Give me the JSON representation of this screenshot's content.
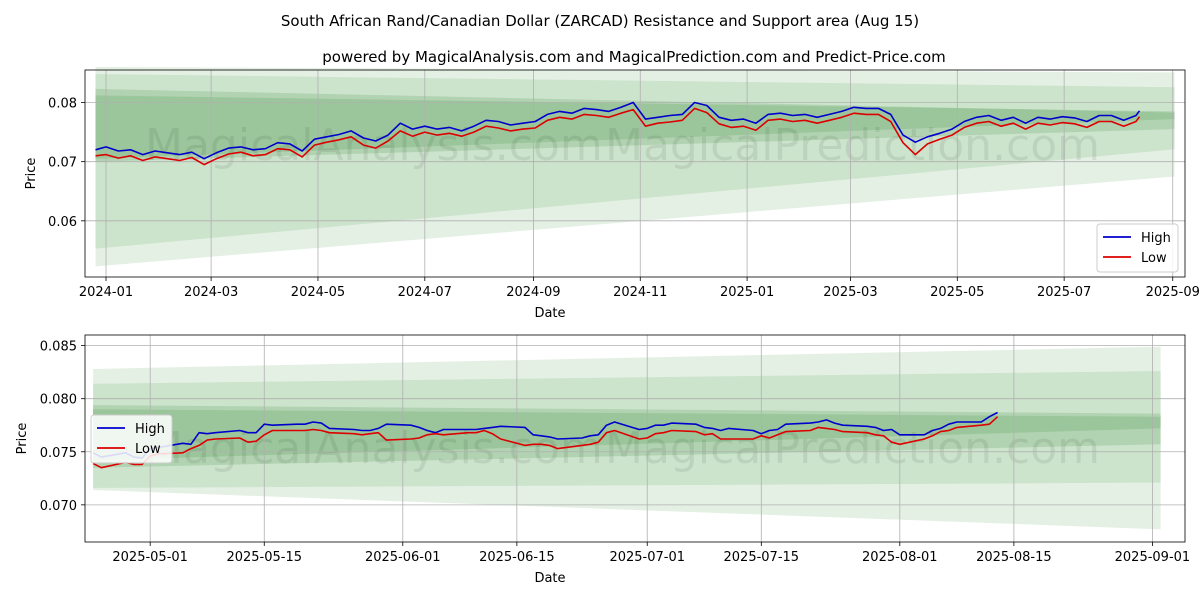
{
  "figure": {
    "title": "South African Rand/Canadian Dollar (ZARCAD) Resistance and Support area (Aug 15)",
    "subtitle": "powered by MagicalAnalysis.com and MagicalPrediction.com and Predict-Price.com",
    "watermarks": [
      "MagicalAnalysis.com",
      "MagicalPrediction.com"
    ],
    "colors": {
      "high": "#0000cc",
      "low": "#dd0000",
      "band": "#2e8b2e",
      "grid": "#b0b0b0"
    }
  },
  "chart_data": [
    {
      "type": "line",
      "xlabel": "Date",
      "ylabel": "Price",
      "xlim": [
        "2023-12-20",
        "2025-09-08"
      ],
      "ylim": [
        0.0505,
        0.0855
      ],
      "xticks": [
        "2024-01",
        "2024-03",
        "2024-05",
        "2024-07",
        "2024-09",
        "2024-11",
        "2025-01",
        "2025-03",
        "2025-05",
        "2025-07",
        "2025-09"
      ],
      "yticks": [
        "0.06",
        "0.07",
        "0.08"
      ],
      "grid": true,
      "legend": "lower-right",
      "bands": [
        {
          "x": [
            "2023-12-26",
            "2025-09-02"
          ],
          "lower": [
            0.0523,
            0.0675
          ],
          "upper": [
            0.086,
            0.0851
          ]
        },
        {
          "x": [
            "2023-12-26",
            "2025-09-02"
          ],
          "lower": [
            0.0553,
            0.0721
          ],
          "upper": [
            0.0848,
            0.0826
          ]
        },
        {
          "x": [
            "2023-12-26",
            "2025-09-02"
          ],
          "lower": [
            0.07,
            0.0755
          ],
          "upper": [
            0.0823,
            0.0783
          ]
        },
        {
          "x": [
            "2023-12-26",
            "2025-09-02"
          ],
          "lower": [
            0.0705,
            0.0772
          ],
          "upper": [
            0.0812,
            0.0785
          ]
        }
      ],
      "series": [
        {
          "name": "High",
          "x": [
            "2023-12-26",
            "2024-01-01",
            "2024-01-08",
            "2024-01-15",
            "2024-01-22",
            "2024-01-29",
            "2024-02-05",
            "2024-02-12",
            "2024-02-19",
            "2024-02-26",
            "2024-03-04",
            "2024-03-11",
            "2024-03-18",
            "2024-03-25",
            "2024-04-01",
            "2024-04-08",
            "2024-04-15",
            "2024-04-22",
            "2024-04-29",
            "2024-05-06",
            "2024-05-13",
            "2024-05-20",
            "2024-05-27",
            "2024-06-03",
            "2024-06-10",
            "2024-06-17",
            "2024-06-24",
            "2024-07-01",
            "2024-07-08",
            "2024-07-15",
            "2024-07-22",
            "2024-07-29",
            "2024-08-05",
            "2024-08-12",
            "2024-08-19",
            "2024-08-26",
            "2024-09-02",
            "2024-09-09",
            "2024-09-16",
            "2024-09-23",
            "2024-09-30",
            "2024-10-07",
            "2024-10-14",
            "2024-10-21",
            "2024-10-28",
            "2024-11-04",
            "2024-11-11",
            "2024-11-18",
            "2024-11-25",
            "2024-12-02",
            "2024-12-09",
            "2024-12-16",
            "2024-12-23",
            "2024-12-30",
            "2025-01-06",
            "2025-01-13",
            "2025-01-20",
            "2025-01-27",
            "2025-02-03",
            "2025-02-10",
            "2025-02-17",
            "2025-02-24",
            "2025-03-03",
            "2025-03-10",
            "2025-03-17",
            "2025-03-24",
            "2025-03-31",
            "2025-04-07",
            "2025-04-14",
            "2025-04-21",
            "2025-04-28",
            "2025-05-05",
            "2025-05-12",
            "2025-05-19",
            "2025-05-26",
            "2025-06-02",
            "2025-06-09",
            "2025-06-16",
            "2025-06-23",
            "2025-06-30",
            "2025-07-07",
            "2025-07-14",
            "2025-07-21",
            "2025-07-28",
            "2025-08-04",
            "2025-08-11",
            "2025-08-13"
          ],
          "values": [
            0.072,
            0.0725,
            0.0718,
            0.072,
            0.0712,
            0.0718,
            0.0715,
            0.0712,
            0.0716,
            0.0705,
            0.0715,
            0.0723,
            0.0725,
            0.072,
            0.0722,
            0.0732,
            0.073,
            0.0718,
            0.0738,
            0.0742,
            0.0746,
            0.0752,
            0.074,
            0.0735,
            0.0745,
            0.0765,
            0.0755,
            0.076,
            0.0755,
            0.0758,
            0.0752,
            0.076,
            0.077,
            0.0768,
            0.0762,
            0.0765,
            0.0768,
            0.078,
            0.0785,
            0.0782,
            0.079,
            0.0788,
            0.0785,
            0.0792,
            0.08,
            0.0772,
            0.0775,
            0.0778,
            0.078,
            0.08,
            0.0795,
            0.0775,
            0.077,
            0.0772,
            0.0765,
            0.078,
            0.0782,
            0.0778,
            0.078,
            0.0775,
            0.078,
            0.0785,
            0.0792,
            0.079,
            0.079,
            0.078,
            0.0745,
            0.0733,
            0.0742,
            0.0748,
            0.0755,
            0.0768,
            0.0775,
            0.0778,
            0.077,
            0.0775,
            0.0765,
            0.0775,
            0.0772,
            0.0776,
            0.0774,
            0.0768,
            0.0778,
            0.0778,
            0.077,
            0.0778,
            0.0786
          ]
        },
        {
          "name": "Low",
          "x": [
            "2023-12-26",
            "2024-01-01",
            "2024-01-08",
            "2024-01-15",
            "2024-01-22",
            "2024-01-29",
            "2024-02-05",
            "2024-02-12",
            "2024-02-19",
            "2024-02-26",
            "2024-03-04",
            "2024-03-11",
            "2024-03-18",
            "2024-03-25",
            "2024-04-01",
            "2024-04-08",
            "2024-04-15",
            "2024-04-22",
            "2024-04-29",
            "2024-05-06",
            "2024-05-13",
            "2024-05-20",
            "2024-05-27",
            "2024-06-03",
            "2024-06-10",
            "2024-06-17",
            "2024-06-24",
            "2024-07-01",
            "2024-07-08",
            "2024-07-15",
            "2024-07-22",
            "2024-07-29",
            "2024-08-05",
            "2024-08-12",
            "2024-08-19",
            "2024-08-26",
            "2024-09-02",
            "2024-09-09",
            "2024-09-16",
            "2024-09-23",
            "2024-09-30",
            "2024-10-07",
            "2024-10-14",
            "2024-10-21",
            "2024-10-28",
            "2024-11-04",
            "2024-11-11",
            "2024-11-18",
            "2024-11-25",
            "2024-12-02",
            "2024-12-09",
            "2024-12-16",
            "2024-12-23",
            "2024-12-30",
            "2025-01-06",
            "2025-01-13",
            "2025-01-20",
            "2025-01-27",
            "2025-02-03",
            "2025-02-10",
            "2025-02-17",
            "2025-02-24",
            "2025-03-03",
            "2025-03-10",
            "2025-03-17",
            "2025-03-24",
            "2025-03-31",
            "2025-04-07",
            "2025-04-14",
            "2025-04-21",
            "2025-04-28",
            "2025-05-05",
            "2025-05-12",
            "2025-05-19",
            "2025-05-26",
            "2025-06-02",
            "2025-06-09",
            "2025-06-16",
            "2025-06-23",
            "2025-06-30",
            "2025-07-07",
            "2025-07-14",
            "2025-07-21",
            "2025-07-28",
            "2025-08-04",
            "2025-08-11",
            "2025-08-13"
          ],
          "values": [
            0.071,
            0.0712,
            0.0706,
            0.071,
            0.0702,
            0.0708,
            0.0705,
            0.0702,
            0.0707,
            0.0695,
            0.0705,
            0.0713,
            0.0716,
            0.071,
            0.0712,
            0.0722,
            0.072,
            0.0708,
            0.0728,
            0.0733,
            0.0737,
            0.0742,
            0.0728,
            0.0723,
            0.0735,
            0.0752,
            0.0743,
            0.075,
            0.0745,
            0.0748,
            0.0743,
            0.075,
            0.076,
            0.0757,
            0.0752,
            0.0755,
            0.0757,
            0.077,
            0.0775,
            0.0772,
            0.078,
            0.0778,
            0.0775,
            0.0782,
            0.0788,
            0.076,
            0.0765,
            0.0767,
            0.077,
            0.079,
            0.0783,
            0.0764,
            0.0758,
            0.076,
            0.0753,
            0.077,
            0.0772,
            0.0768,
            0.077,
            0.0765,
            0.077,
            0.0775,
            0.0782,
            0.078,
            0.078,
            0.0768,
            0.0732,
            0.0712,
            0.073,
            0.0738,
            0.0745,
            0.0758,
            0.0765,
            0.0768,
            0.076,
            0.0765,
            0.0755,
            0.0765,
            0.0762,
            0.0766,
            0.0764,
            0.0758,
            0.0768,
            0.0768,
            0.076,
            0.0768,
            0.0776
          ]
        }
      ]
    },
    {
      "type": "line",
      "xlabel": "Date",
      "ylabel": "Price",
      "xlim": [
        "2025-04-23",
        "2025-09-05"
      ],
      "ylim": [
        0.0665,
        0.086
      ],
      "xticks": [
        "2025-05-01",
        "2025-05-15",
        "2025-06-01",
        "2025-06-15",
        "2025-07-01",
        "2025-07-15",
        "2025-08-01",
        "2025-08-15",
        "2025-09-01"
      ],
      "yticks": [
        "0.070",
        "0.075",
        "0.080",
        "0.085"
      ],
      "grid": true,
      "legend": "center-left",
      "bands": [
        {
          "x": [
            "2025-04-24",
            "2025-09-02"
          ],
          "lower": [
            0.0714,
            0.0677
          ],
          "upper": [
            0.0828,
            0.0849
          ]
        },
        {
          "x": [
            "2025-04-24",
            "2025-09-02"
          ],
          "lower": [
            0.0716,
            0.0721
          ],
          "upper": [
            0.0814,
            0.0826
          ]
        },
        {
          "x": [
            "2025-04-24",
            "2025-09-02"
          ],
          "lower": [
            0.0735,
            0.0757
          ],
          "upper": [
            0.0794,
            0.0786
          ]
        },
        {
          "x": [
            "2025-04-24",
            "2025-09-02"
          ],
          "lower": [
            0.0742,
            0.0772
          ],
          "upper": [
            0.079,
            0.0783
          ]
        }
      ],
      "series": [
        {
          "name": "High",
          "x": [
            "2025-04-24",
            "2025-04-25",
            "2025-04-28",
            "2025-04-29",
            "2025-04-30",
            "2025-05-01",
            "2025-05-02",
            "2025-05-05",
            "2025-05-06",
            "2025-05-07",
            "2025-05-08",
            "2025-05-09",
            "2025-05-12",
            "2025-05-13",
            "2025-05-14",
            "2025-05-15",
            "2025-05-16",
            "2025-05-19",
            "2025-05-20",
            "2025-05-21",
            "2025-05-22",
            "2025-05-23",
            "2025-05-26",
            "2025-05-27",
            "2025-05-28",
            "2025-05-29",
            "2025-05-30",
            "2025-06-02",
            "2025-06-03",
            "2025-06-04",
            "2025-06-05",
            "2025-06-06",
            "2025-06-09",
            "2025-06-10",
            "2025-06-11",
            "2025-06-12",
            "2025-06-13",
            "2025-06-16",
            "2025-06-17",
            "2025-06-18",
            "2025-06-19",
            "2025-06-20",
            "2025-06-23",
            "2025-06-24",
            "2025-06-25",
            "2025-06-26",
            "2025-06-27",
            "2025-06-30",
            "2025-07-01",
            "2025-07-02",
            "2025-07-03",
            "2025-07-04",
            "2025-07-07",
            "2025-07-08",
            "2025-07-09",
            "2025-07-10",
            "2025-07-11",
            "2025-07-14",
            "2025-07-15",
            "2025-07-16",
            "2025-07-17",
            "2025-07-18",
            "2025-07-21",
            "2025-07-22",
            "2025-07-23",
            "2025-07-24",
            "2025-07-25",
            "2025-07-28",
            "2025-07-29",
            "2025-07-30",
            "2025-07-31",
            "2025-08-01",
            "2025-08-04",
            "2025-08-05",
            "2025-08-06",
            "2025-08-07",
            "2025-08-08",
            "2025-08-11",
            "2025-08-12",
            "2025-08-13"
          ],
          "values": [
            0.0749,
            0.0745,
            0.0749,
            0.0745,
            0.0744,
            0.0753,
            0.0754,
            0.0758,
            0.0757,
            0.0768,
            0.0767,
            0.0768,
            0.077,
            0.0768,
            0.0768,
            0.0776,
            0.0775,
            0.0776,
            0.0776,
            0.0778,
            0.0777,
            0.0772,
            0.0771,
            0.077,
            0.077,
            0.0772,
            0.0776,
            0.0775,
            0.0773,
            0.077,
            0.0768,
            0.0771,
            0.0771,
            0.0771,
            0.0772,
            0.0773,
            0.0774,
            0.0773,
            0.0766,
            0.0765,
            0.0764,
            0.0762,
            0.0763,
            0.0765,
            0.0766,
            0.0775,
            0.0778,
            0.0771,
            0.0772,
            0.0775,
            0.0775,
            0.0777,
            0.0776,
            0.0773,
            0.0772,
            0.077,
            0.0772,
            0.077,
            0.0767,
            0.077,
            0.0771,
            0.0776,
            0.0777,
            0.0778,
            0.078,
            0.0777,
            0.0775,
            0.0774,
            0.0773,
            0.077,
            0.0771,
            0.0766,
            0.0766,
            0.077,
            0.0772,
            0.0776,
            0.0778,
            0.0778,
            0.0783,
            0.0787
          ]
        },
        {
          "name": "Low",
          "x": [
            "2025-04-24",
            "2025-04-25",
            "2025-04-28",
            "2025-04-29",
            "2025-04-30",
            "2025-05-01",
            "2025-05-02",
            "2025-05-05",
            "2025-05-06",
            "2025-05-07",
            "2025-05-08",
            "2025-05-09",
            "2025-05-12",
            "2025-05-13",
            "2025-05-14",
            "2025-05-15",
            "2025-05-16",
            "2025-05-19",
            "2025-05-20",
            "2025-05-21",
            "2025-05-22",
            "2025-05-23",
            "2025-05-26",
            "2025-05-27",
            "2025-05-28",
            "2025-05-29",
            "2025-05-30",
            "2025-06-02",
            "2025-06-03",
            "2025-06-04",
            "2025-06-05",
            "2025-06-06",
            "2025-06-09",
            "2025-06-10",
            "2025-06-11",
            "2025-06-12",
            "2025-06-13",
            "2025-06-16",
            "2025-06-17",
            "2025-06-18",
            "2025-06-19",
            "2025-06-20",
            "2025-06-23",
            "2025-06-24",
            "2025-06-25",
            "2025-06-26",
            "2025-06-27",
            "2025-06-30",
            "2025-07-01",
            "2025-07-02",
            "2025-07-03",
            "2025-07-04",
            "2025-07-07",
            "2025-07-08",
            "2025-07-09",
            "2025-07-10",
            "2025-07-11",
            "2025-07-14",
            "2025-07-15",
            "2025-07-16",
            "2025-07-17",
            "2025-07-18",
            "2025-07-21",
            "2025-07-22",
            "2025-07-23",
            "2025-07-24",
            "2025-07-25",
            "2025-07-28",
            "2025-07-29",
            "2025-07-30",
            "2025-07-31",
            "2025-08-01",
            "2025-08-04",
            "2025-08-05",
            "2025-08-06",
            "2025-08-07",
            "2025-08-08",
            "2025-08-11",
            "2025-08-12",
            "2025-08-13"
          ],
          "values": [
            0.0739,
            0.0735,
            0.074,
            0.0738,
            0.0738,
            0.0746,
            0.0748,
            0.0749,
            0.0753,
            0.0756,
            0.0761,
            0.0762,
            0.0763,
            0.0759,
            0.076,
            0.0766,
            0.077,
            0.077,
            0.077,
            0.0771,
            0.077,
            0.0768,
            0.0767,
            0.0766,
            0.0767,
            0.0768,
            0.0761,
            0.0762,
            0.0763,
            0.0766,
            0.0767,
            0.0766,
            0.0768,
            0.0768,
            0.077,
            0.0767,
            0.0762,
            0.0756,
            0.0757,
            0.0757,
            0.0756,
            0.0753,
            0.0756,
            0.0757,
            0.0759,
            0.0768,
            0.077,
            0.0762,
            0.0763,
            0.0767,
            0.0768,
            0.077,
            0.0769,
            0.0766,
            0.0767,
            0.0762,
            0.0762,
            0.0762,
            0.0765,
            0.0763,
            0.0766,
            0.0769,
            0.077,
            0.0773,
            0.0772,
            0.0771,
            0.0769,
            0.0768,
            0.0766,
            0.0765,
            0.0759,
            0.0757,
            0.0762,
            0.0765,
            0.0769,
            0.077,
            0.0773,
            0.0775,
            0.0776,
            0.0783
          ]
        }
      ]
    }
  ]
}
